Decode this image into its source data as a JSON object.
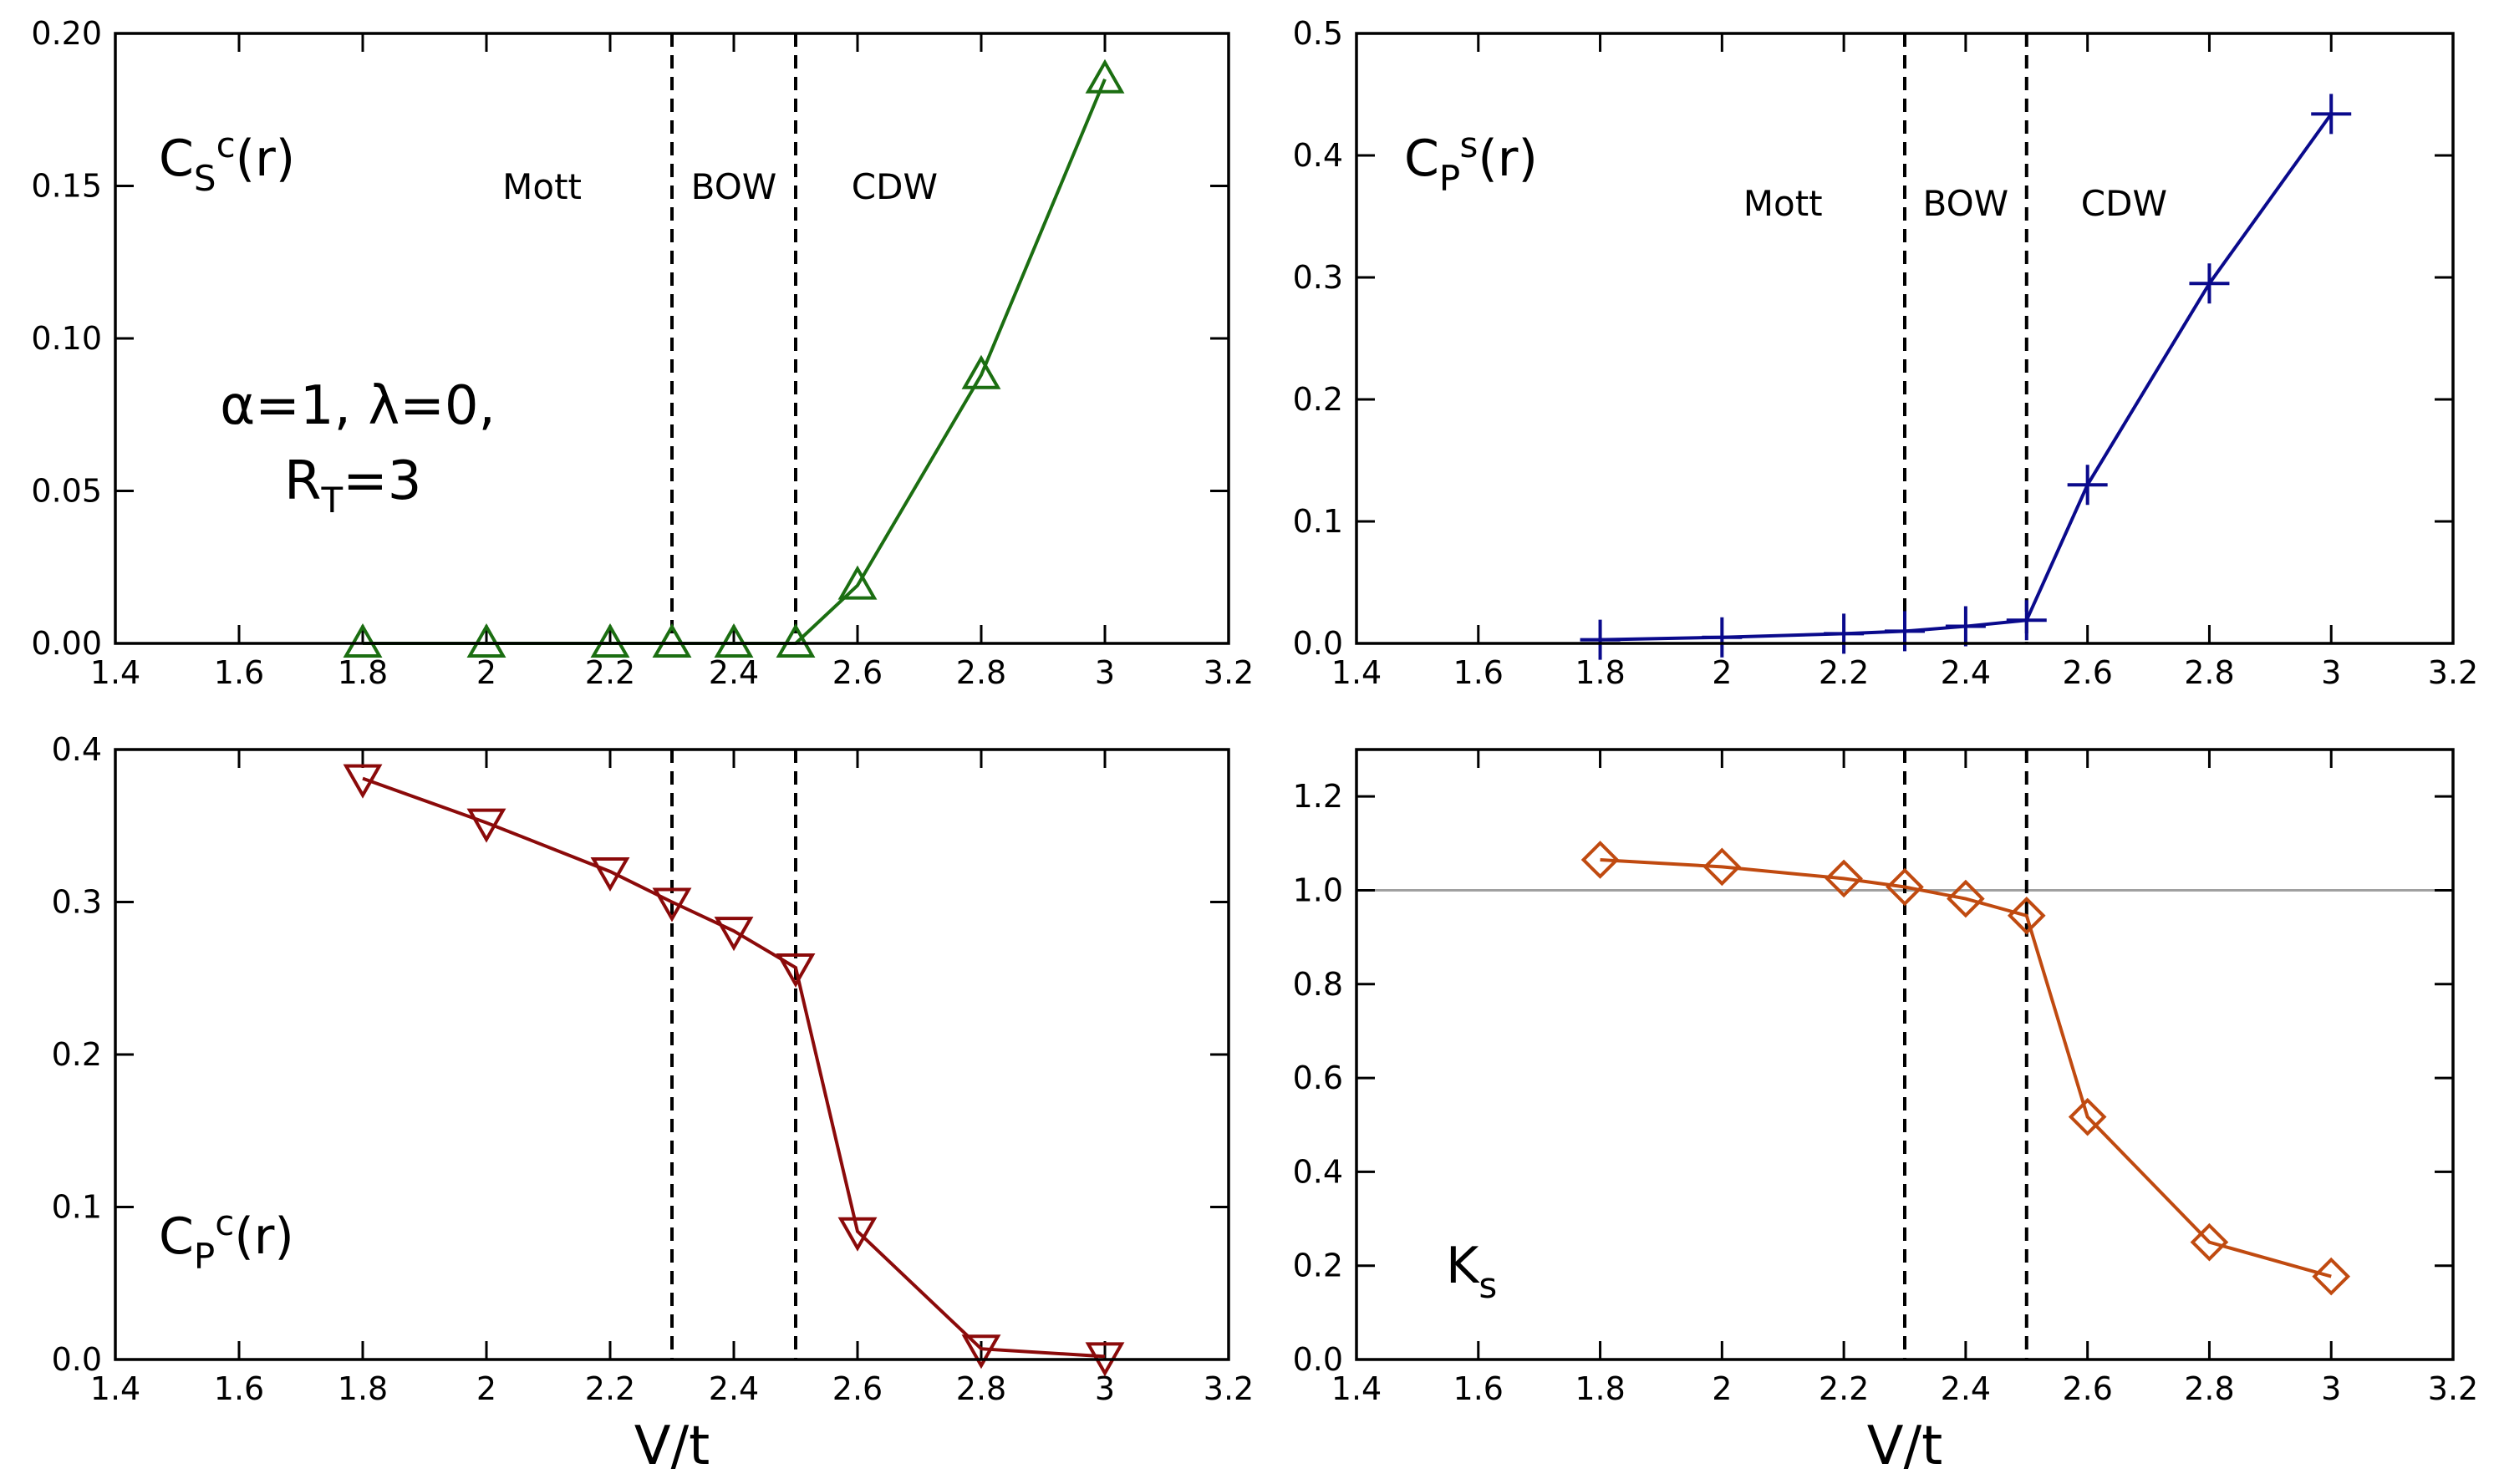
{
  "figure": {
    "xlabel": "V/t",
    "xlim": [
      1.4,
      3.2
    ],
    "xticks": [
      "1.4",
      "1.6",
      "1.8",
      "2",
      "2.2",
      "2.4",
      "2.6",
      "2.8",
      "3",
      "3.2"
    ],
    "xtick_values": [
      1.4,
      1.6,
      1.8,
      2.0,
      2.2,
      2.4,
      2.6,
      2.8,
      3.0,
      3.2
    ],
    "phase_boundaries": [
      2.3,
      2.5
    ],
    "regions": [
      "Mott",
      "BOW",
      "CDW"
    ],
    "parameters": {
      "line1": "α=1, λ=0,",
      "line2_main": "R",
      "line2_sub": "T",
      "line2_rest": "=3"
    }
  },
  "chart_data": [
    {
      "id": "cs-c",
      "type": "line",
      "label": {
        "main": "C",
        "sub": "S",
        "sup": "c",
        "tail": "(r)"
      },
      "marker": "triangle-up",
      "color": "#1b6e11",
      "x": [
        1.8,
        2.0,
        2.2,
        2.3,
        2.4,
        2.5,
        2.6,
        2.8,
        3.0
      ],
      "y": [
        0.0,
        0.0,
        0.0,
        0.0,
        0.0,
        0.0,
        0.019,
        0.088,
        0.185
      ],
      "ylim": [
        0,
        0.2
      ],
      "yticks": [
        "0.00",
        "0.05",
        "0.10",
        "0.15",
        "0.20"
      ],
      "ytick_values": [
        0,
        0.05,
        0.1,
        0.15,
        0.2
      ],
      "show_markers_x": [
        1.8,
        2.0,
        2.2,
        2.3,
        2.4,
        2.5,
        2.6,
        2.8,
        3.0
      ]
    },
    {
      "id": "cp-s",
      "type": "line",
      "label": {
        "main": "C",
        "sub": "P",
        "sup": "s",
        "tail": "(r)"
      },
      "marker": "plus",
      "color": "#0a0a8c",
      "x": [
        1.8,
        2.0,
        2.2,
        2.3,
        2.4,
        2.5,
        2.6,
        2.8,
        3.0
      ],
      "y": [
        0.003,
        0.005,
        0.008,
        0.01,
        0.014,
        0.019,
        0.13,
        0.295,
        0.434
      ],
      "ylim": [
        0,
        0.5
      ],
      "yticks": [
        "0.0",
        "0.1",
        "0.2",
        "0.3",
        "0.4",
        "0.5"
      ],
      "ytick_values": [
        0,
        0.1,
        0.2,
        0.3,
        0.4,
        0.5
      ]
    },
    {
      "id": "cp-c",
      "type": "line",
      "label": {
        "main": "C",
        "sub": "P",
        "sup": "c",
        "tail": "(r)"
      },
      "marker": "triangle-down",
      "color": "#8b0a0a",
      "x": [
        1.8,
        2.0,
        2.2,
        2.3,
        2.4,
        2.5,
        2.6,
        2.8,
        3.0
      ],
      "y": [
        0.381,
        0.352,
        0.32,
        0.3,
        0.281,
        0.257,
        0.084,
        0.007,
        0.002
      ],
      "ylim": [
        0,
        0.4
      ],
      "yticks": [
        "0.0",
        "0.1",
        "0.2",
        "0.3",
        "0.4"
      ],
      "ytick_values": [
        0,
        0.1,
        0.2,
        0.3,
        0.4
      ]
    },
    {
      "id": "ks",
      "type": "line",
      "label": {
        "main": "K",
        "sub": "s",
        "sup": "",
        "tail": ""
      },
      "marker": "diamond",
      "color": "#c04a10",
      "x": [
        1.8,
        2.0,
        2.2,
        2.3,
        2.4,
        2.5,
        2.6,
        2.8,
        3.0
      ],
      "y": [
        1.065,
        1.05,
        1.025,
        1.007,
        0.982,
        0.946,
        0.517,
        0.25,
        0.177
      ],
      "ylim": [
        0,
        1.3
      ],
      "yticks": [
        "0.0",
        "0.2",
        "0.4",
        "0.6",
        "0.8",
        "1.0",
        "1.2"
      ],
      "ytick_values": [
        0,
        0.2,
        0.4,
        0.6,
        0.8,
        1.0,
        1.2
      ],
      "reference_line": 1.0
    }
  ]
}
